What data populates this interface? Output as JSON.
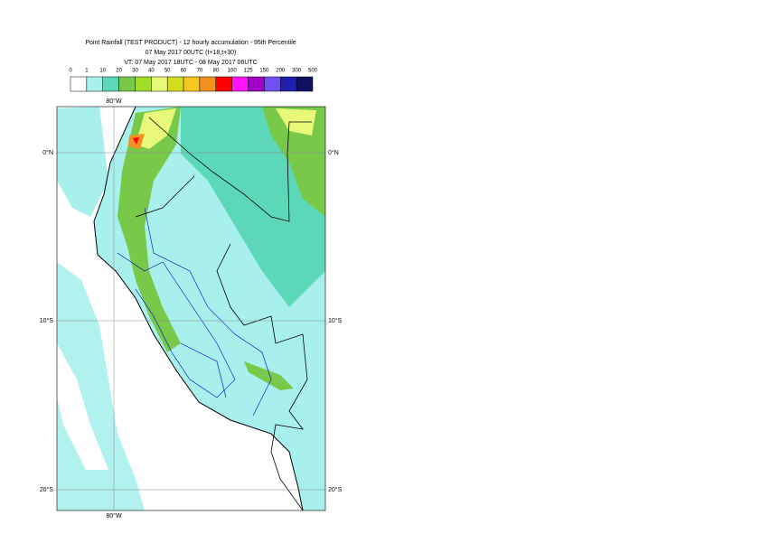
{
  "header": {
    "title": "Point Rainfall (TEST PRODUCT) - 12 hourly accumulation - 95th Percentile",
    "subtitle": "07 May 2017 00UTC (t+18,t+30)",
    "valid_time": "VT: 07 May 2017 18UTC - 08 May 2017 06UTC"
  },
  "legend": {
    "thresholds": [
      0,
      1,
      10,
      20,
      30,
      40,
      50,
      60,
      70,
      80,
      100,
      125,
      150,
      200,
      300,
      500
    ],
    "colors": [
      "#ffffff",
      "#a8f0ec",
      "#5cd8b8",
      "#78c84a",
      "#a0dc28",
      "#e8f87a",
      "#d4dc20",
      "#f4c81e",
      "#f4901e",
      "#ff0000",
      "#ff14ff",
      "#a000c8",
      "#7050f0",
      "#2020b0",
      "#101060"
    ]
  },
  "map": {
    "lon_label": "80°W",
    "lat_labels": [
      "0°N",
      "10°S",
      "20°S"
    ]
  }
}
